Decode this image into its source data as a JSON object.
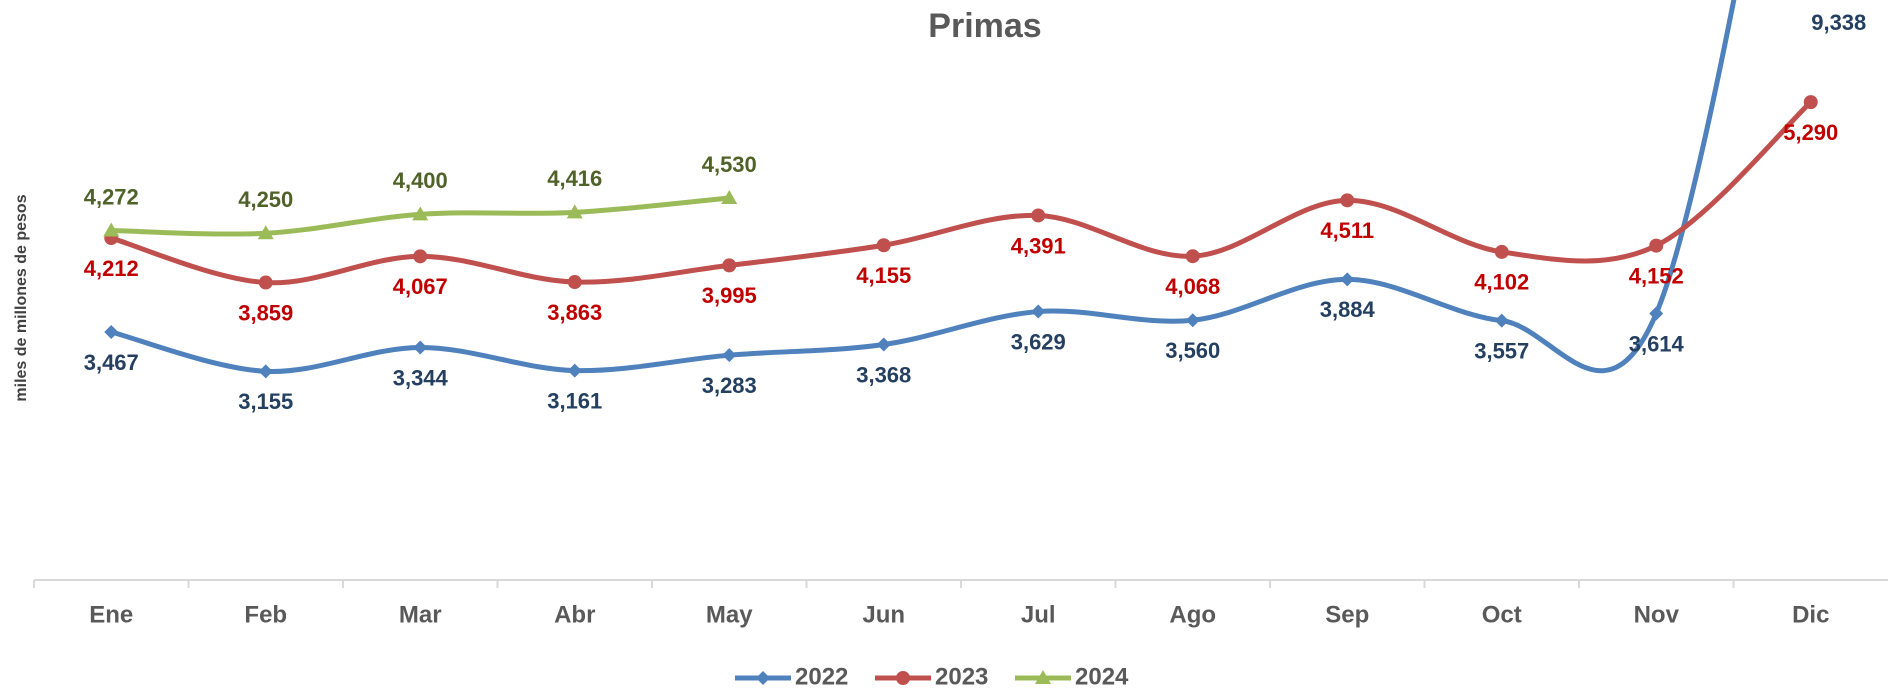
{
  "chart_data": {
    "type": "line",
    "title": "Primas",
    "y_label": "miles de millones de pesos",
    "categories": [
      "Ene",
      "Feb",
      "Mar",
      "Abr",
      "May",
      "Jun",
      "Jul",
      "Ago",
      "Sep",
      "Oct",
      "Nov",
      "Dic"
    ],
    "ylim": [
      1500,
      6100
    ],
    "smooth": true,
    "legend": "bottom",
    "series": [
      {
        "name": "2022",
        "color": "#4f81bd",
        "label_color": "#243f60",
        "marker": "diamond",
        "label_position": "below",
        "values": [
          3467,
          3155,
          3344,
          3161,
          3283,
          3368,
          3629,
          3560,
          3884,
          3557,
          3614,
          9338
        ],
        "value_labels": [
          "3,467",
          "3,155",
          "3,344",
          "3,161",
          "3,283",
          "3,368",
          "3,629",
          "3,560",
          "3,884",
          "3,557",
          "3,614",
          "9,338"
        ]
      },
      {
        "name": "2023",
        "color": "#c0504d",
        "label_color": "#c00000",
        "marker": "circle",
        "label_position": "below",
        "values": [
          4212,
          3859,
          4067,
          3863,
          3995,
          4155,
          4391,
          4068,
          4511,
          4102,
          4152,
          5290
        ],
        "value_labels": [
          "4,212",
          "3,859",
          "4,067",
          "3,863",
          "3,995",
          "4,155",
          "4,391",
          "4,068",
          "4,511",
          "4,102",
          "4,152",
          "5,290"
        ]
      },
      {
        "name": "2024",
        "color": "#9bbb59",
        "label_color": "#4f6228",
        "marker": "triangle",
        "label_position": "above",
        "values": [
          4272,
          4250,
          4400,
          4416,
          4530,
          null,
          null,
          null,
          null,
          null,
          null,
          null
        ],
        "value_labels": [
          "4,272",
          "4,250",
          "4,400",
          "4,416",
          "4,530",
          null,
          null,
          null,
          null,
          null,
          null,
          null
        ]
      }
    ]
  }
}
